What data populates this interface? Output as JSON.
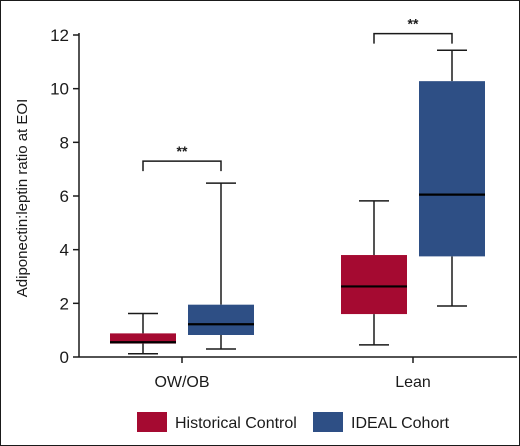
{
  "chart_data": {
    "type": "box",
    "categories": [
      "OW/OB",
      "Lean"
    ],
    "ylabel": "Adiponectin:leptin ratio at EOI",
    "xlabel": "",
    "ylim": [
      0,
      12
    ],
    "yticks": [
      0,
      2,
      4,
      6,
      8,
      10,
      12
    ],
    "grid": false,
    "legend_position": "bottom",
    "series": [
      {
        "name": "Historical Control",
        "color": "#a50a31",
        "boxes": [
          {
            "category": "OW/OB",
            "min": 0.12,
            "q1": 0.5,
            "median": 0.55,
            "q3": 0.88,
            "max": 1.62
          },
          {
            "category": "Lean",
            "min": 0.45,
            "q1": 1.6,
            "median": 2.63,
            "q3": 3.8,
            "max": 5.82
          }
        ]
      },
      {
        "name": "IDEAL Cohort",
        "color": "#2e4f85",
        "boxes": [
          {
            "category": "OW/OB",
            "min": 0.3,
            "q1": 0.82,
            "median": 1.22,
            "q3": 1.95,
            "max": 6.48
          },
          {
            "category": "Lean",
            "min": 1.9,
            "q1": 3.75,
            "median": 6.05,
            "q3": 10.28,
            "max": 11.43
          }
        ]
      }
    ],
    "annotations": [
      {
        "category": "OW/OB",
        "text": "**",
        "y": 7.3
      },
      {
        "category": "Lean",
        "text": "**",
        "y": 12.05
      }
    ]
  }
}
